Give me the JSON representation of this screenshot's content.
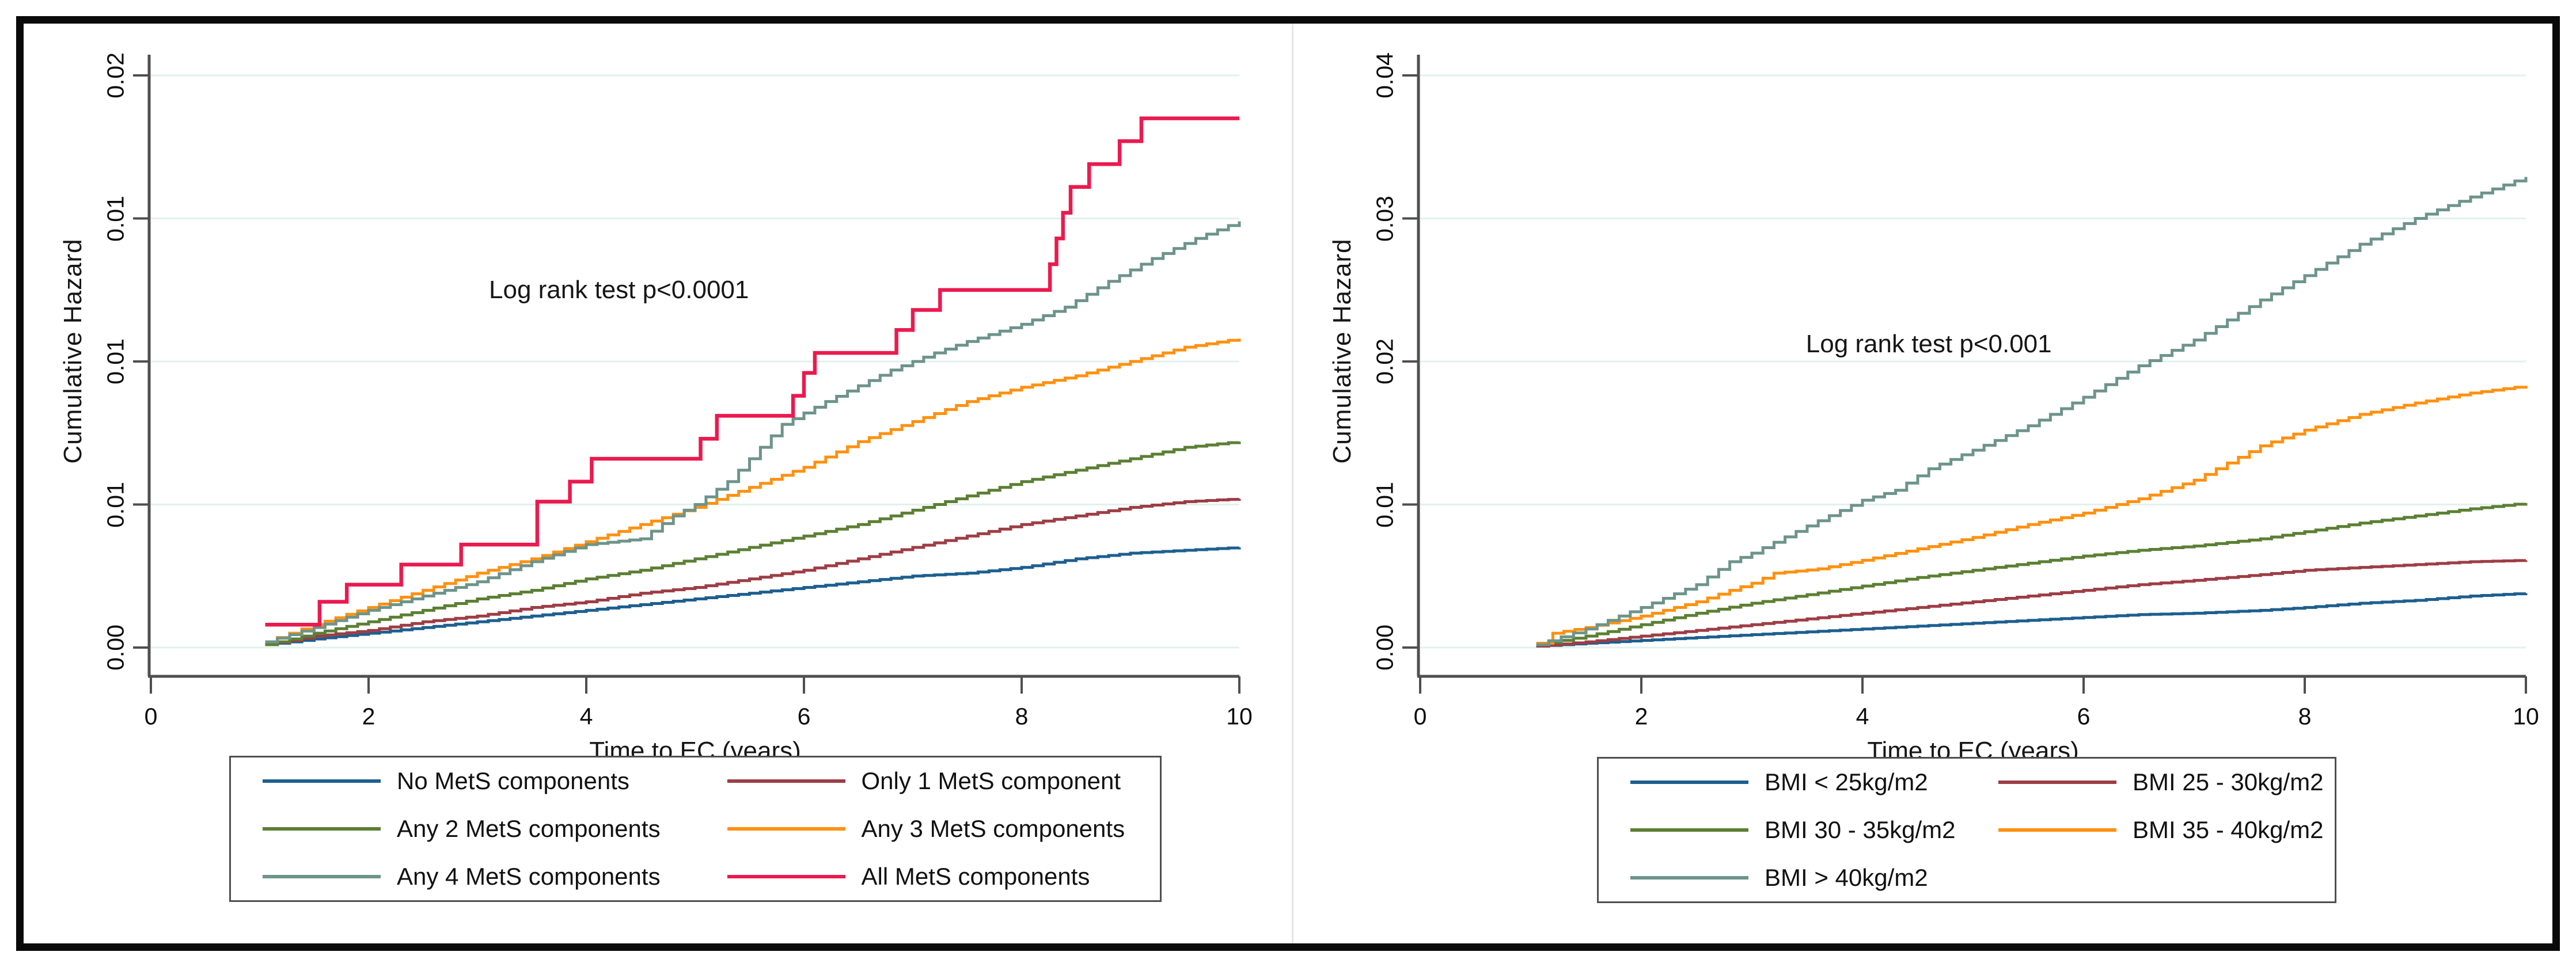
{
  "colors": {
    "frame": "#0a0a0a",
    "axis": "#4f4f4f",
    "gridline": "#e2f1ee",
    "legend_border": "#4f4f4f",
    "text": "#161616",
    "blue": "#1d5f8f",
    "maroon": "#9d3d45",
    "green": "#5b7f33",
    "orange": "#ff9110",
    "teal": "#6d948a",
    "crimson": "#ea1a4f"
  },
  "chart_data": [
    {
      "type": "line",
      "subtype": "cumulative-hazard-step",
      "title": "",
      "ylabel": "Cumulative Hazard",
      "xlabel": "Time to EC (years)",
      "annotation": "Log rank test p<0.0001",
      "annotation_pos": {
        "t": 4.3,
        "v": 0.0125
      },
      "xlim": [
        0,
        10
      ],
      "ylim": [
        0,
        0.02
      ],
      "grid": true,
      "legend_position": "below",
      "xticks": [
        {
          "t": 0,
          "label": "0"
        },
        {
          "t": 2,
          "label": "2"
        },
        {
          "t": 4,
          "label": "4"
        },
        {
          "t": 6,
          "label": "6"
        },
        {
          "t": 8,
          "label": "8"
        },
        {
          "t": 10,
          "label": "10"
        }
      ],
      "yticks": [
        {
          "v": 0.0,
          "label": "0.00"
        },
        {
          "v": 0.005,
          "label": "0.01"
        },
        {
          "v": 0.01,
          "label": "0.01"
        },
        {
          "v": 0.015,
          "label": "0.01"
        },
        {
          "v": 0.02,
          "label": "0.02"
        }
      ],
      "legend_columns": [
        [
          0,
          2,
          4
        ],
        [
          1,
          3,
          5
        ]
      ],
      "series": [
        {
          "name": "No MetS components",
          "color": "#1d5f8f",
          "texture": "fine",
          "points": [
            [
              1.05,
              0.0001
            ],
            [
              1.5,
              0.0003
            ],
            [
              2,
              0.0005
            ],
            [
              2.5,
              0.0007
            ],
            [
              3,
              0.0009
            ],
            [
              3.5,
              0.0011
            ],
            [
              4,
              0.0013
            ],
            [
              4.5,
              0.0015
            ],
            [
              5,
              0.0017
            ],
            [
              5.5,
              0.0019
            ],
            [
              6,
              0.0021
            ],
            [
              6.5,
              0.0023
            ],
            [
              7,
              0.0025
            ],
            [
              7.5,
              0.0026
            ],
            [
              8,
              0.0028
            ],
            [
              8.5,
              0.0031
            ],
            [
              9,
              0.0033
            ],
            [
              9.5,
              0.0034
            ],
            [
              10,
              0.0035
            ]
          ]
        },
        {
          "name": "Only 1 MetS component",
          "color": "#9d3d45",
          "texture": "fine",
          "points": [
            [
              1.05,
              0.0001
            ],
            [
              1.5,
              0.0004
            ],
            [
              2,
              0.0006
            ],
            [
              2.5,
              0.0009
            ],
            [
              3,
              0.0011
            ],
            [
              3.5,
              0.0014
            ],
            [
              4,
              0.0016
            ],
            [
              4.5,
              0.0019
            ],
            [
              5,
              0.0021
            ],
            [
              5.5,
              0.0024
            ],
            [
              6,
              0.0027
            ],
            [
              6.5,
              0.0031
            ],
            [
              7,
              0.0035
            ],
            [
              7.5,
              0.0039
            ],
            [
              8,
              0.0043
            ],
            [
              8.5,
              0.0046
            ],
            [
              9,
              0.0049
            ],
            [
              9.5,
              0.0051
            ],
            [
              10,
              0.0052
            ]
          ]
        },
        {
          "name": "Any 2 MetS components",
          "color": "#5b7f33",
          "texture": "fine",
          "points": [
            [
              1.05,
              0.0001
            ],
            [
              1.5,
              0.0005
            ],
            [
              2,
              0.0009
            ],
            [
              2.5,
              0.0013
            ],
            [
              3,
              0.0017
            ],
            [
              3.5,
              0.002
            ],
            [
              4,
              0.0024
            ],
            [
              4.5,
              0.0027
            ],
            [
              5,
              0.0031
            ],
            [
              5.5,
              0.0035
            ],
            [
              6,
              0.0039
            ],
            [
              6.5,
              0.0043
            ],
            [
              7,
              0.0048
            ],
            [
              7.5,
              0.0053
            ],
            [
              8,
              0.0058
            ],
            [
              8.5,
              0.0062
            ],
            [
              9,
              0.0066
            ],
            [
              9.5,
              0.007
            ],
            [
              10,
              0.0072
            ]
          ]
        },
        {
          "name": "Any 3 MetS components",
          "color": "#ff9110",
          "texture": "fine",
          "points": [
            [
              1.05,
              0.0002
            ],
            [
              1.5,
              0.0008
            ],
            [
              2,
              0.0014
            ],
            [
              2.5,
              0.002
            ],
            [
              3,
              0.0026
            ],
            [
              3.5,
              0.0031
            ],
            [
              4,
              0.0037
            ],
            [
              4.5,
              0.0043
            ],
            [
              5,
              0.0049
            ],
            [
              5.5,
              0.0056
            ],
            [
              6,
              0.0063
            ],
            [
              6.5,
              0.0072
            ],
            [
              7,
              0.0079
            ],
            [
              7.5,
              0.0086
            ],
            [
              8,
              0.0091
            ],
            [
              8.5,
              0.0095
            ],
            [
              9,
              0.01
            ],
            [
              9.5,
              0.0105
            ],
            [
              10,
              0.0108
            ]
          ]
        },
        {
          "name": "Any 4 MetS components",
          "color": "#6d948a",
          "texture": "fine",
          "points": [
            [
              1.05,
              0.0002
            ],
            [
              1.5,
              0.0007
            ],
            [
              2,
              0.0013
            ],
            [
              2.5,
              0.0018
            ],
            [
              3,
              0.0023
            ],
            [
              3.5,
              0.003
            ],
            [
              4,
              0.0036
            ],
            [
              4.5,
              0.0038
            ],
            [
              4.8,
              0.0046
            ],
            [
              5,
              0.005
            ],
            [
              5.3,
              0.0058
            ],
            [
              5.6,
              0.007
            ],
            [
              5.8,
              0.0078
            ],
            [
              6.2,
              0.0086
            ],
            [
              6.8,
              0.0097
            ],
            [
              7.2,
              0.0103
            ],
            [
              7.5,
              0.0107
            ],
            [
              8,
              0.0113
            ],
            [
              8.4,
              0.0119
            ],
            [
              8.8,
              0.0128
            ],
            [
              9.2,
              0.0136
            ],
            [
              9.6,
              0.0143
            ],
            [
              10,
              0.0149
            ]
          ]
        },
        {
          "name": "All MetS components",
          "color": "#ea1a4f",
          "texture": "steps",
          "points": [
            [
              1.05,
              0.0008
            ],
            [
              1.55,
              0.0016
            ],
            [
              1.8,
              0.0022
            ],
            [
              2.3,
              0.0029
            ],
            [
              2.85,
              0.0036
            ],
            [
              3.55,
              0.0051
            ],
            [
              3.85,
              0.0058
            ],
            [
              4.05,
              0.0066
            ],
            [
              5.05,
              0.0073
            ],
            [
              5.2,
              0.0081
            ],
            [
              5.9,
              0.0088
            ],
            [
              6.0,
              0.0096
            ],
            [
              6.1,
              0.0103
            ],
            [
              6.85,
              0.0111
            ],
            [
              7.0,
              0.0118
            ],
            [
              7.25,
              0.0125
            ],
            [
              8.26,
              0.0134
            ],
            [
              8.32,
              0.0143
            ],
            [
              8.38,
              0.0152
            ],
            [
              8.45,
              0.0161
            ],
            [
              8.62,
              0.0169
            ],
            [
              8.9,
              0.0177
            ],
            [
              9.1,
              0.0185
            ],
            [
              10,
              0.0185
            ]
          ]
        }
      ]
    },
    {
      "type": "line",
      "subtype": "cumulative-hazard-step",
      "title": "",
      "ylabel": "Cumulative Hazard",
      "xlabel": "Time to EC (years)",
      "annotation": "Log rank test p<0.001",
      "annotation_pos": {
        "t": 4.6,
        "v": 0.0212
      },
      "xlim": [
        0,
        10
      ],
      "ylim": [
        0,
        0.04
      ],
      "grid": true,
      "legend_position": "below",
      "xticks": [
        {
          "t": 0,
          "label": "0"
        },
        {
          "t": 2,
          "label": "2"
        },
        {
          "t": 4,
          "label": "4"
        },
        {
          "t": 6,
          "label": "6"
        },
        {
          "t": 8,
          "label": "8"
        },
        {
          "t": 10,
          "label": "10"
        }
      ],
      "yticks": [
        {
          "v": 0.0,
          "label": "0.00"
        },
        {
          "v": 0.01,
          "label": "0.01"
        },
        {
          "v": 0.02,
          "label": "0.02"
        },
        {
          "v": 0.03,
          "label": "0.03"
        },
        {
          "v": 0.04,
          "label": "0.04"
        }
      ],
      "legend_columns": [
        [
          0,
          2,
          4
        ],
        [
          1,
          3
        ]
      ],
      "series": [
        {
          "name": "BMI < 25kg/m2",
          "color": "#1d5f8f",
          "texture": "fine",
          "points": [
            [
              1.05,
              0.0001
            ],
            [
              1.5,
              0.0003
            ],
            [
              2,
              0.0005
            ],
            [
              2.5,
              0.0007
            ],
            [
              3,
              0.0009
            ],
            [
              3.5,
              0.0011
            ],
            [
              4,
              0.0013
            ],
            [
              4.5,
              0.0015
            ],
            [
              5,
              0.0017
            ],
            [
              5.5,
              0.0019
            ],
            [
              6,
              0.0021
            ],
            [
              6.5,
              0.0023
            ],
            [
              7,
              0.0024
            ],
            [
              7.6,
              0.0026
            ],
            [
              8,
              0.0028
            ],
            [
              8.5,
              0.0031
            ],
            [
              9,
              0.0033
            ],
            [
              9.5,
              0.0036
            ],
            [
              10,
              0.0038
            ]
          ]
        },
        {
          "name": "BMI 25 - 30kg/m2",
          "color": "#9d3d45",
          "texture": "fine",
          "points": [
            [
              1.05,
              0.0001
            ],
            [
              1.5,
              0.0004
            ],
            [
              2,
              0.0008
            ],
            [
              2.5,
              0.0012
            ],
            [
              3,
              0.0016
            ],
            [
              3.5,
              0.002
            ],
            [
              4,
              0.0024
            ],
            [
              4.5,
              0.0028
            ],
            [
              5,
              0.0032
            ],
            [
              5.5,
              0.0036
            ],
            [
              6,
              0.004
            ],
            [
              6.5,
              0.0044
            ],
            [
              7,
              0.0047
            ],
            [
              7.6,
              0.0051
            ],
            [
              8,
              0.0054
            ],
            [
              8.5,
              0.0056
            ],
            [
              9,
              0.0058
            ],
            [
              9.5,
              0.006
            ],
            [
              10,
              0.0061
            ]
          ]
        },
        {
          "name": "BMI 30 - 35kg/m2",
          "color": "#5b7f33",
          "texture": "fine",
          "points": [
            [
              1.05,
              0.0002
            ],
            [
              1.5,
              0.0008
            ],
            [
              2,
              0.0016
            ],
            [
              2.5,
              0.0024
            ],
            [
              3,
              0.0031
            ],
            [
              3.5,
              0.0037
            ],
            [
              4,
              0.0043
            ],
            [
              4.5,
              0.0049
            ],
            [
              5,
              0.0054
            ],
            [
              5.5,
              0.0059
            ],
            [
              6,
              0.0064
            ],
            [
              6.5,
              0.0068
            ],
            [
              7,
              0.0071
            ],
            [
              7.6,
              0.0076
            ],
            [
              8,
              0.0081
            ],
            [
              8.5,
              0.0087
            ],
            [
              9,
              0.0092
            ],
            [
              9.5,
              0.0097
            ],
            [
              10,
              0.0101
            ]
          ]
        },
        {
          "name": "BMI 35 - 40kg/m2",
          "color": "#ff9110",
          "texture": "fine",
          "points": [
            [
              1.05,
              0.0003
            ],
            [
              1.2,
              0.001
            ],
            [
              1.5,
              0.0014
            ],
            [
              2,
              0.0022
            ],
            [
              2.5,
              0.0032
            ],
            [
              2.8,
              0.004
            ],
            [
              3,
              0.0045
            ],
            [
              3.2,
              0.0052
            ],
            [
              3.6,
              0.0055
            ],
            [
              4,
              0.0061
            ],
            [
              4.5,
              0.0069
            ],
            [
              5,
              0.0077
            ],
            [
              5.5,
              0.0086
            ],
            [
              6,
              0.0094
            ],
            [
              6.5,
              0.0104
            ],
            [
              7,
              0.0117
            ],
            [
              7.6,
              0.0141
            ],
            [
              8,
              0.0152
            ],
            [
              8.5,
              0.0163
            ],
            [
              9,
              0.0171
            ],
            [
              9.5,
              0.0178
            ],
            [
              10,
              0.0183
            ]
          ]
        },
        {
          "name": "BMI > 40kg/m2",
          "color": "#6d948a",
          "texture": "fine",
          "points": [
            [
              1.05,
              0.0002
            ],
            [
              1.5,
              0.0013
            ],
            [
              2,
              0.0028
            ],
            [
              2.5,
              0.0044
            ],
            [
              2.8,
              0.006
            ],
            [
              3,
              0.0066
            ],
            [
              3.5,
              0.0085
            ],
            [
              4,
              0.0103
            ],
            [
              4.3,
              0.011
            ],
            [
              4.6,
              0.0125
            ],
            [
              5,
              0.0138
            ],
            [
              5.5,
              0.0155
            ],
            [
              6,
              0.0175
            ],
            [
              6.5,
              0.0197
            ],
            [
              7,
              0.0215
            ],
            [
              7.6,
              0.0243
            ],
            [
              8,
              0.026
            ],
            [
              8.5,
              0.0282
            ],
            [
              9,
              0.03
            ],
            [
              9.5,
              0.0315
            ],
            [
              10,
              0.0329
            ]
          ]
        }
      ]
    }
  ]
}
